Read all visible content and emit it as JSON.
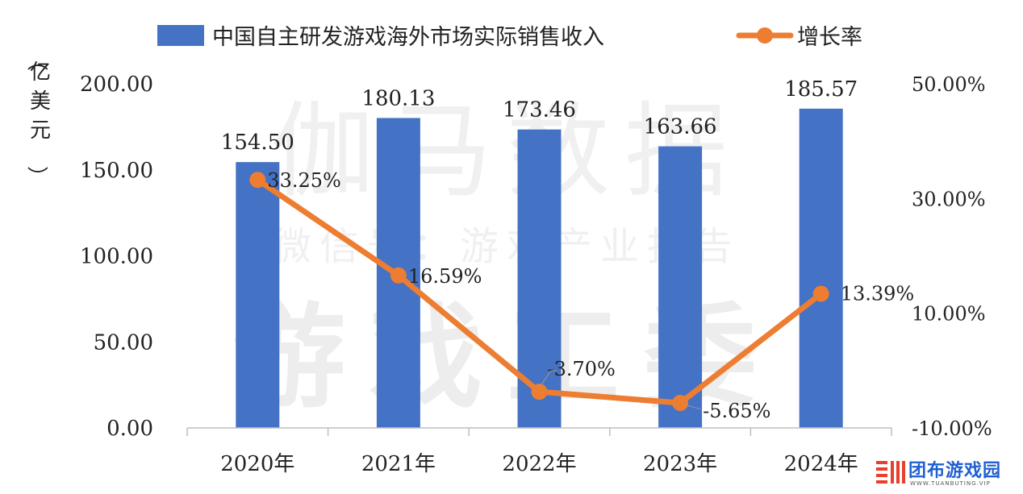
{
  "chart_data": {
    "type": "bar+line",
    "categories": [
      "2020年",
      "2021年",
      "2022年",
      "2023年",
      "2024年"
    ],
    "series": [
      {
        "name": "中国自主研发游戏海外市场实际销售收入",
        "type": "bar",
        "axis": "left",
        "values": [
          154.5,
          180.13,
          173.46,
          163.66,
          185.57
        ],
        "labels": [
          "154.50",
          "180.13",
          "173.46",
          "163.66",
          "185.57"
        ]
      },
      {
        "name": "增长率",
        "type": "line",
        "axis": "right",
        "values": [
          33.25,
          16.59,
          -3.7,
          -5.65,
          13.39
        ],
        "labels": [
          "33.25%",
          "16.59%",
          "-3.70%",
          "-5.65%",
          "13.39%"
        ]
      }
    ],
    "ylabel": "（亿美元）",
    "ylim": [
      0,
      200
    ],
    "yticks": [
      "0.00",
      "50.00",
      "100.00",
      "150.00",
      "200.00"
    ],
    "y2lim": [
      -10,
      50
    ],
    "y2ticks": [
      "-10.00%",
      "10.00%",
      "30.00%",
      "50.00%"
    ],
    "legend_position": "top",
    "grid": false,
    "colors": {
      "bar": "#4472c4",
      "line": "#ed7d31"
    }
  },
  "watermarks": [
    "伽马数据",
    "微信号：游戏产业报告",
    "游戏工委"
  ],
  "brand": {
    "name": "团布游戏园",
    "url": "WWW.TUANBUTING.VIP"
  }
}
